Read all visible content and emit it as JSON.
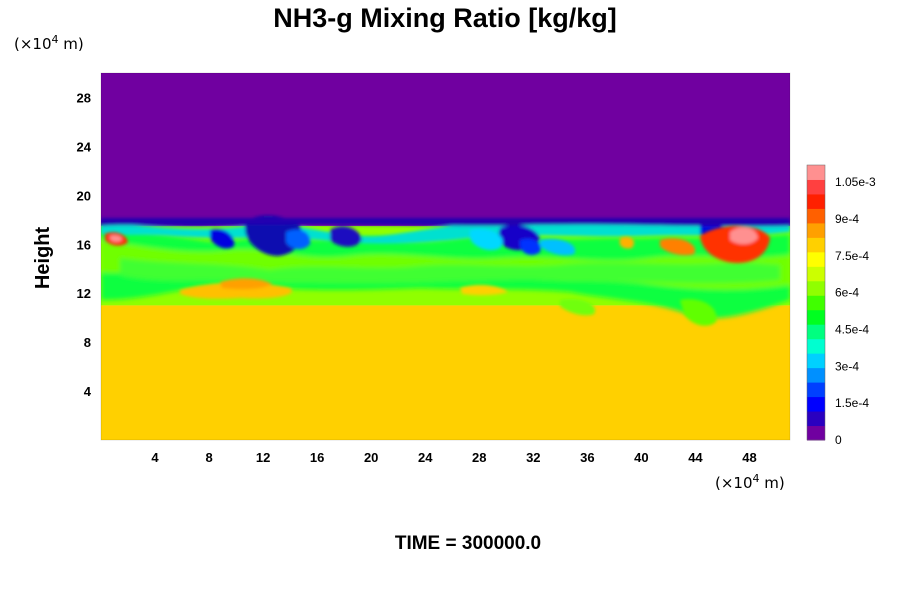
{
  "chart_data": {
    "type": "heatmap",
    "title": "NH3-g Mixing Ratio [kg/kg]",
    "xlabel": "",
    "ylabel": "Height",
    "x_unit": "(×10",
    "x_unit_exp": "4",
    "x_unit_tail": " m)",
    "y_unit": "(×10",
    "y_unit_exp": "4",
    "y_unit_tail": " m)",
    "xlim": [
      0,
      51
    ],
    "ylim": [
      0,
      30
    ],
    "x_ticks": [
      "4",
      "8",
      "12",
      "16",
      "20",
      "24",
      "28",
      "32",
      "36",
      "40",
      "44",
      "48"
    ],
    "y_ticks": [
      "4",
      "8",
      "12",
      "16",
      "20",
      "24",
      "28"
    ],
    "colorbar": {
      "ticks": [
        "0",
        "1.5e-4",
        "3e-4",
        "4.5e-4",
        "6e-4",
        "7.5e-4",
        "9e-4",
        "1.05e-3"
      ],
      "range": [
        0,
        0.00112
      ]
    },
    "regions": [
      {
        "name": "upper layer",
        "y_range": [
          17.5,
          30
        ],
        "value": 0
      },
      {
        "name": "transition layer",
        "y_range": [
          11,
          17.5
        ],
        "value": 0.0006
      },
      {
        "name": "lower layer",
        "y_range": [
          0,
          11
        ],
        "value": 0.00078
      }
    ],
    "footer": "TIME = 300000.0"
  }
}
